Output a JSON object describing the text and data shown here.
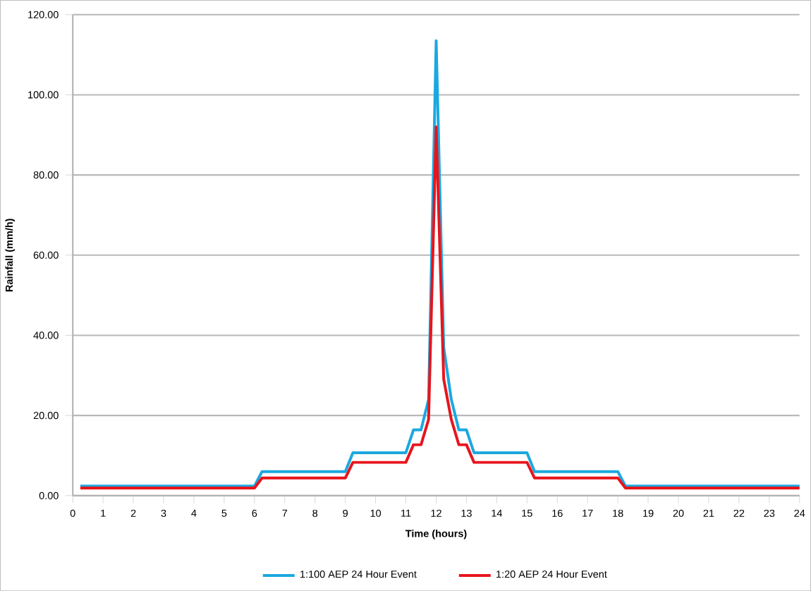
{
  "chart_data": {
    "type": "line",
    "xlabel": "Time (hours)",
    "ylabel": "Rainfall (mm/h)",
    "x": [
      0.25,
      6,
      6.25,
      9,
      9.25,
      11,
      11.25,
      11.5,
      11.75,
      12,
      12.25,
      12.5,
      12.75,
      13,
      13.25,
      15,
      15.25,
      18,
      18.25,
      24
    ],
    "series": [
      {
        "name": "1:100 AEP 24 Hour Event",
        "color": "#1ba8e0",
        "values": [
          2.4,
          2.4,
          6,
          6,
          10.7,
          10.7,
          16.4,
          16.4,
          24,
          113.5,
          37,
          24,
          16.4,
          16.4,
          10.7,
          10.7,
          6,
          6,
          2.4,
          2.4
        ]
      },
      {
        "name": "1:20 AEP 24 Hour Event",
        "color": "#e8141c",
        "values": [
          1.9,
          1.9,
          4.4,
          4.4,
          8.3,
          8.3,
          12.7,
          12.7,
          19,
          92,
          29,
          19,
          12.7,
          12.7,
          8.3,
          8.3,
          4.4,
          4.4,
          1.9,
          1.9
        ]
      }
    ],
    "xlim": [
      0,
      24
    ],
    "xticks": [
      0,
      1,
      2,
      3,
      4,
      5,
      6,
      7,
      8,
      9,
      10,
      11,
      12,
      13,
      14,
      15,
      16,
      17,
      18,
      19,
      20,
      21,
      22,
      23,
      24
    ],
    "ylim": [
      0,
      120
    ],
    "yticks": [
      {
        "value": 0,
        "label": "0.00"
      },
      {
        "value": 20,
        "label": "20.00"
      },
      {
        "value": 40,
        "label": "40.00"
      },
      {
        "value": 60,
        "label": "60.00"
      },
      {
        "value": 80,
        "label": "80.00"
      },
      {
        "value": 100,
        "label": "100.00"
      },
      {
        "value": 120,
        "label": "120.00"
      }
    ],
    "grid": "y",
    "legend": "bottom",
    "marker": "none",
    "line_style": "solid"
  }
}
